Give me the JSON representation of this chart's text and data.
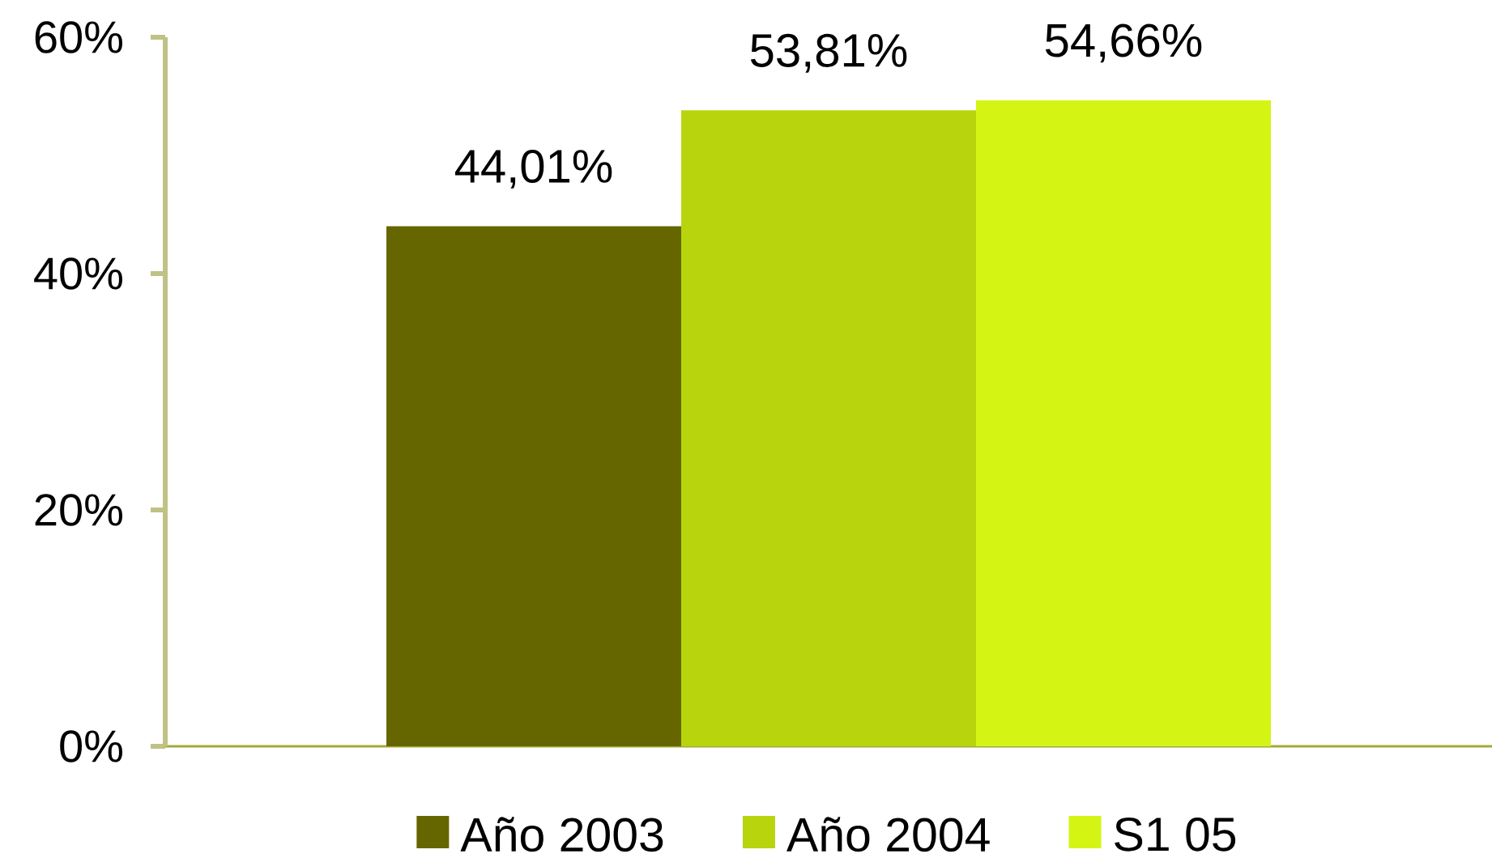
{
  "chart_data": {
    "type": "bar",
    "categories": [
      null
    ],
    "series": [
      {
        "name": "Año 2003",
        "color": "#666600",
        "values": [
          44.01
        ],
        "value_labels": [
          "44,01%"
        ]
      },
      {
        "name": "Año 2004",
        "color": "#b8d40c",
        "values": [
          53.81
        ],
        "value_labels": [
          "53,81%"
        ]
      },
      {
        "name": "S1 05",
        "color": "#d4f514",
        "values": [
          54.66
        ],
        "value_labels": [
          "54,66%"
        ]
      }
    ],
    "ylim": [
      0,
      60
    ],
    "yticks": [
      {
        "value": 0,
        "label": "0%"
      },
      {
        "value": 20,
        "label": "20%"
      },
      {
        "value": 40,
        "label": "40%"
      },
      {
        "value": 60,
        "label": "60%"
      }
    ],
    "tick_labels": "y",
    "legend": "bottom"
  }
}
